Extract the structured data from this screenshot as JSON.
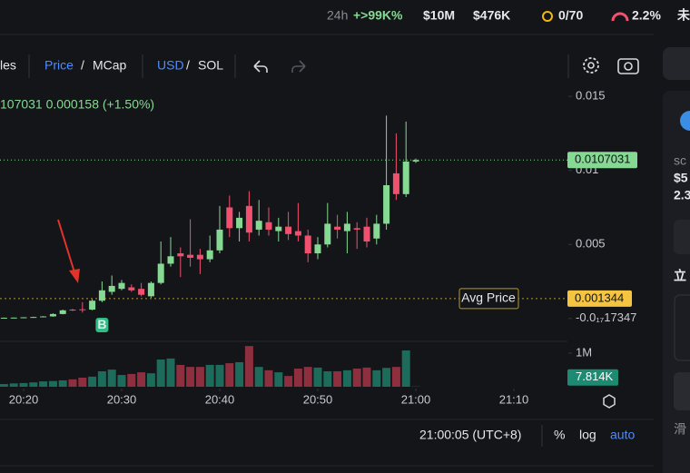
{
  "top_bar": {
    "period": "24h",
    "change": "+>99K%",
    "market_cap": "$10M",
    "volume": "$476K",
    "holders": "0/70",
    "risk": "2.2%",
    "more": "未"
  },
  "toolbar": {
    "partial": "les",
    "price": "Price",
    "price_sep": "/",
    "mcap": "MCap",
    "usd": "USD",
    "usd_sep": "/",
    "sol": "SOL"
  },
  "chart_data": {
    "type": "candlestick",
    "header": "107031 0.000158 (+1.50%)",
    "x": [
      "20:18",
      "20:19",
      "20:20",
      "20:21",
      "20:22",
      "20:23",
      "20:24",
      "20:25",
      "20:26",
      "20:27",
      "20:28",
      "20:29",
      "20:30",
      "20:31",
      "20:32",
      "20:33",
      "20:34",
      "20:35",
      "20:36",
      "20:37",
      "20:38",
      "20:39",
      "20:40",
      "20:41",
      "20:42",
      "20:43",
      "20:44",
      "20:45",
      "20:46",
      "20:47",
      "20:48",
      "20:49",
      "20:50",
      "20:51",
      "20:52",
      "20:53",
      "20:54",
      "20:55",
      "20:56",
      "20:57",
      "20:58",
      "20:59",
      "21:00"
    ],
    "open": [
      4e-05,
      5e-05,
      6e-05,
      8e-05,
      0.0001,
      0.00014,
      0.0003,
      0.0006,
      0.00062,
      0.0006,
      0.0012,
      0.0018,
      0.002,
      0.0021,
      0.002,
      0.0015,
      0.0024,
      0.0037,
      0.0044,
      0.0043,
      0.0043,
      0.004,
      0.0046,
      0.0075,
      0.0061,
      0.0076,
      0.006,
      0.0065,
      0.0059,
      0.0062,
      0.0059,
      0.0056,
      0.0044,
      0.005,
      0.0062,
      0.0059,
      0.0061,
      0.0062,
      0.0054,
      0.0064,
      0.0098,
      0.0084,
      0.0106
    ],
    "close": [
      5e-05,
      6e-05,
      8e-05,
      0.0001,
      0.00014,
      0.0003,
      0.00055,
      0.00055,
      0.00058,
      0.0012,
      0.0019,
      0.0022,
      0.0024,
      0.0019,
      0.0016,
      0.0024,
      0.0037,
      0.0042,
      0.0042,
      0.0041,
      0.004,
      0.0046,
      0.006,
      0.0061,
      0.0068,
      0.0058,
      0.0066,
      0.006,
      0.0062,
      0.0057,
      0.0056,
      0.0044,
      0.005,
      0.0064,
      0.006,
      0.0064,
      0.006,
      0.0052,
      0.0064,
      0.009,
      0.0084,
      0.0106,
      0.0107
    ],
    "high": [
      6e-05,
      7e-05,
      9e-05,
      0.00012,
      0.00016,
      0.00035,
      0.0006,
      0.00065,
      0.0011,
      0.0013,
      0.0025,
      0.0029,
      0.0026,
      0.0023,
      0.0024,
      0.0025,
      0.0052,
      0.0055,
      0.0048,
      0.0067,
      0.0047,
      0.0056,
      0.0076,
      0.0083,
      0.0072,
      0.0086,
      0.008,
      0.0075,
      0.0068,
      0.0072,
      0.0078,
      0.006,
      0.0055,
      0.0078,
      0.007,
      0.0072,
      0.0065,
      0.0068,
      0.007,
      0.0137,
      0.0125,
      0.0133,
      0.0108
    ],
    "low": [
      3e-05,
      4e-05,
      5e-05,
      7e-05,
      9e-05,
      0.00012,
      0.00028,
      0.0005,
      0.0004,
      0.00055,
      0.0011,
      0.0016,
      0.0019,
      0.0018,
      0.0015,
      0.0014,
      0.0023,
      0.0035,
      0.0028,
      0.0035,
      0.003,
      0.0038,
      0.0044,
      0.0055,
      0.0052,
      0.0052,
      0.0056,
      0.0056,
      0.0052,
      0.0053,
      0.0052,
      0.0038,
      0.004,
      0.0048,
      0.0054,
      0.0044,
      0.0047,
      0.0048,
      0.005,
      0.006,
      0.008,
      0.0082,
      0.0105
    ],
    "up_color": "#86d993",
    "down_color": "#f0516e",
    "xlim": [
      "20:17",
      "21:16"
    ],
    "xticks": [
      "20:20",
      "20:30",
      "20:40",
      "20:50",
      "21:00",
      "21:10"
    ],
    "ylim": [
      -0.0013,
      0.0155
    ],
    "yticks": [
      0.015,
      0.01,
      0.005,
      {
        "value": -1.7347e-18,
        "label": "-0.0₁₇17347"
      }
    ],
    "last_price": 0.0107031,
    "avg_price": 0.001344,
    "avg_price_label": "Avg Price",
    "markers": [
      {
        "x": "20:28",
        "label": "B"
      }
    ],
    "volume": {
      "values": [
        80000,
        100000,
        110000,
        130000,
        160000,
        170000,
        190000,
        220000,
        270000,
        300000,
        460000,
        510000,
        350000,
        380000,
        430000,
        400000,
        810000,
        840000,
        650000,
        590000,
        590000,
        650000,
        650000,
        700000,
        730000,
        1210000,
        590000,
        490000,
        430000,
        320000,
        540000,
        590000,
        570000,
        460000,
        460000,
        490000,
        540000,
        570000,
        490000,
        560000,
        590000,
        1080000,
        7814
      ],
      "up_color": "#1d6b5b",
      "down_color": "#8e2f40",
      "ylim": [
        0,
        1350000
      ],
      "yticks": [
        {
          "value": 1000000,
          "label": "1M"
        }
      ],
      "current": {
        "value": 7814,
        "label": "7.814K"
      }
    }
  },
  "footer": {
    "time": "21:00:05 (UTC+8)",
    "percent": "%",
    "log": "log",
    "auto": "auto"
  },
  "side_panel": {
    "name": "sc",
    "price": "$5",
    "amount": "2.3",
    "buy": "立",
    "slippage": "滑"
  }
}
